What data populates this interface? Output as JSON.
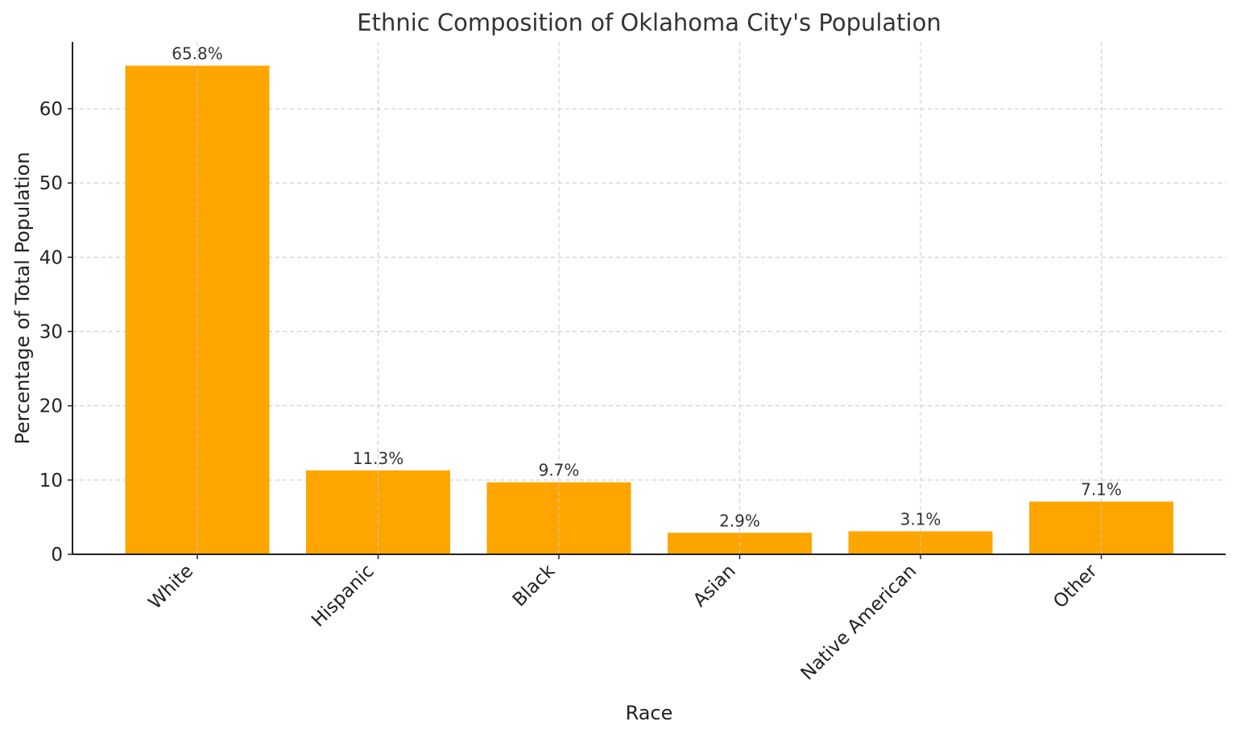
{
  "chart_data": {
    "type": "bar",
    "title": "Ethnic Composition of Oklahoma City's Population",
    "xlabel": "Race",
    "ylabel": "Percentage of Total Population",
    "categories": [
      "White",
      "Hispanic",
      "Black",
      "Asian",
      "Native American",
      "Other"
    ],
    "values": [
      65.8,
      11.3,
      9.7,
      2.9,
      3.1,
      7.1
    ],
    "value_labels": [
      "65.8%",
      "11.3%",
      "9.7%",
      "2.9%",
      "3.1%",
      "7.1%"
    ],
    "ylim": [
      0,
      69
    ],
    "yticks": [
      0,
      10,
      20,
      30,
      40,
      50,
      60
    ],
    "grid": true,
    "bar_color": "#FFA500",
    "tick_label_rotation": -45
  }
}
